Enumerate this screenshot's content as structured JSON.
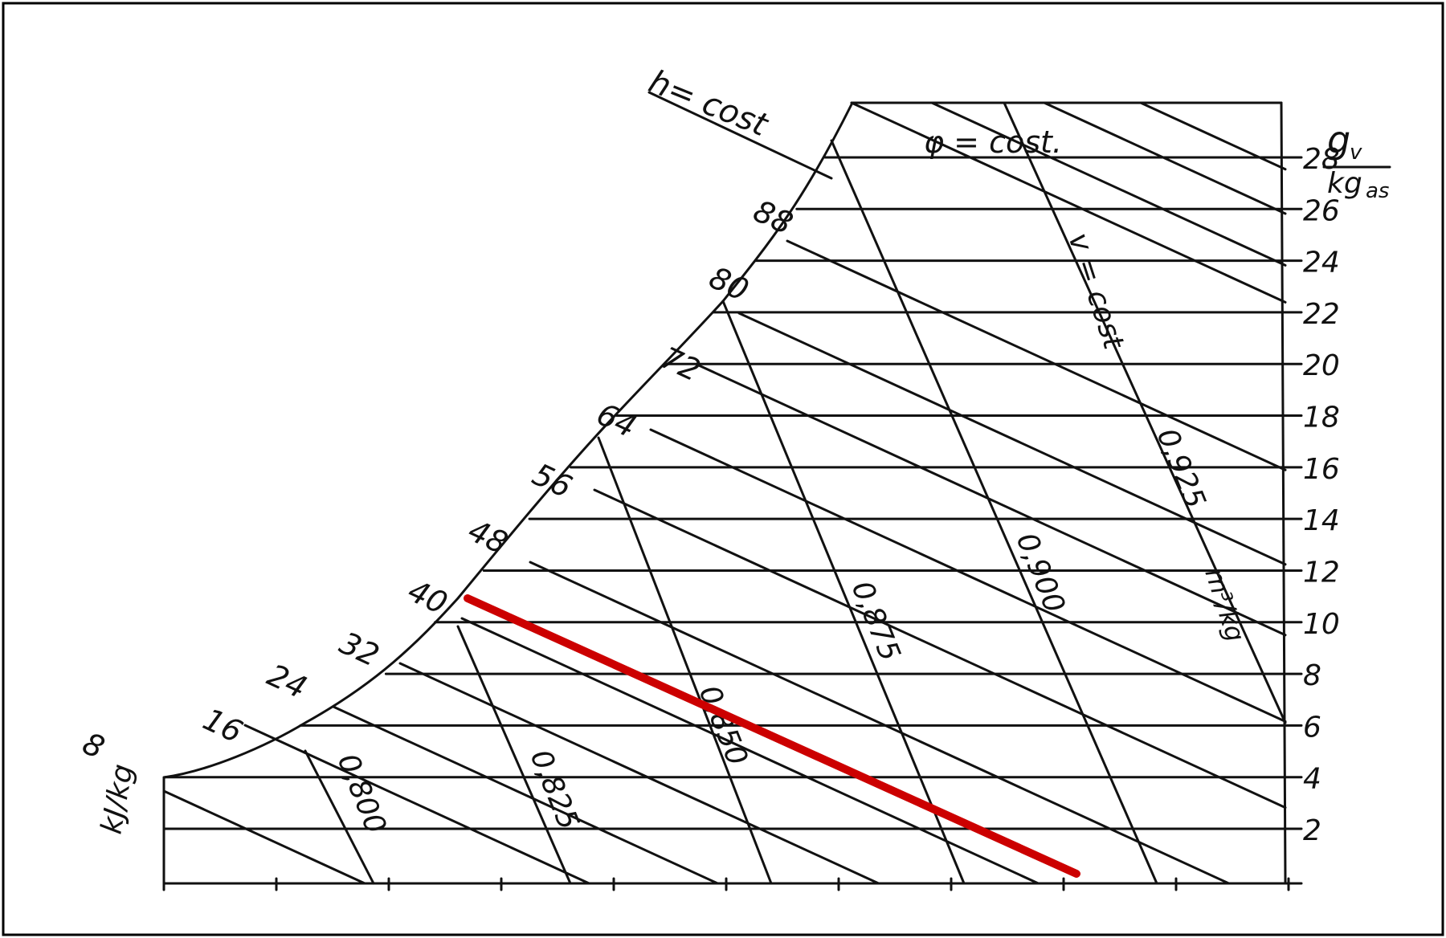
{
  "labels": {
    "enthalpy": "h= cost",
    "humidity_unit_num": "g",
    "humidity_unit_num_sub": "v",
    "humidity_unit_den": "kg",
    "humidity_unit_den_sub": "as",
    "relhum_line": "φ = cost.",
    "volume_line": "v = cost",
    "volume_unit": "m³/kg",
    "enthalpy_unit": "kJ/kg"
  },
  "enthalpy_values": [
    "8",
    "16",
    "24",
    "32",
    "40",
    "48",
    "56",
    "64",
    "72",
    "80",
    "88"
  ],
  "humidity_values": [
    "2",
    "4",
    "6",
    "8",
    "10",
    "12",
    "14",
    "16",
    "18",
    "20",
    "22",
    "24",
    "26",
    "28"
  ],
  "volume_values": [
    "0,800",
    "0,825",
    "0,850",
    "0,875",
    "0,900",
    "0,925"
  ],
  "colors": {
    "ink": "#111111",
    "highlight": "#cc0000",
    "frame": "#000000"
  }
}
